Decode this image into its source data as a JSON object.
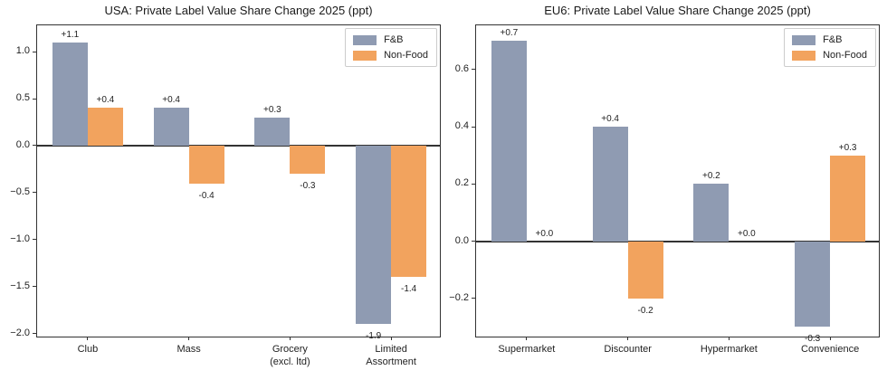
{
  "figure": {
    "background": "#ffffff",
    "text_color": "#1f1f1f",
    "spine_color": "#333333"
  },
  "chart_data": [
    {
      "type": "bar",
      "title": "USA: Private Label Value Share Change 2025 (ppt)",
      "categories": [
        "Club",
        "Mass",
        "Grocery\n(excl. ltd)",
        "Limited\nAssortment"
      ],
      "series": [
        {
          "name": "F&B",
          "color": "#8F9BB2",
          "values": [
            1.1,
            0.4,
            0.3,
            -1.9
          ],
          "labels": [
            "+1.1",
            "+0.4",
            "+0.3",
            "-1.9"
          ]
        },
        {
          "name": "Non-Food",
          "color": "#F2A35E",
          "values": [
            0.4,
            -0.4,
            -0.3,
            -1.4
          ],
          "labels": [
            "+0.4",
            "-0.4",
            "-0.3",
            "-1.4"
          ]
        }
      ],
      "ytick_values": [
        1.0,
        0.5,
        0.0,
        -0.5,
        -1.0,
        -1.5,
        -2.0
      ],
      "ytick_labels": [
        "1.0",
        "0.5",
        "0.0",
        "−0.5",
        "−1.0",
        "−1.5",
        "−2.0"
      ],
      "ylim": [
        -2.05,
        1.28
      ],
      "xlabel": "",
      "ylabel": "",
      "grid": false,
      "legend_position": "upper right"
    },
    {
      "type": "bar",
      "title": "EU6: Private Label Value Share Change 2025 (ppt)",
      "categories": [
        "Supermarket",
        "Discounter",
        "Hypermarket",
        "Convenience"
      ],
      "series": [
        {
          "name": "F&B",
          "color": "#8F9BB2",
          "values": [
            0.7,
            0.4,
            0.2,
            -0.3
          ],
          "labels": [
            "+0.7",
            "+0.4",
            "+0.2",
            "-0.3"
          ]
        },
        {
          "name": "Non-Food",
          "color": "#F2A35E",
          "values": [
            0.0,
            -0.2,
            0.0,
            0.3
          ],
          "labels": [
            "+0.0",
            "-0.2",
            "+0.0",
            "+0.3"
          ]
        }
      ],
      "ytick_values": [
        0.6,
        0.4,
        0.2,
        0.0,
        -0.2
      ],
      "ytick_labels": [
        "0.6",
        "0.4",
        "0.2",
        "0.0",
        "−0.2"
      ],
      "ylim": [
        -0.34,
        0.755
      ],
      "xlabel": "",
      "ylabel": "",
      "grid": false,
      "legend_position": "upper right"
    }
  ]
}
